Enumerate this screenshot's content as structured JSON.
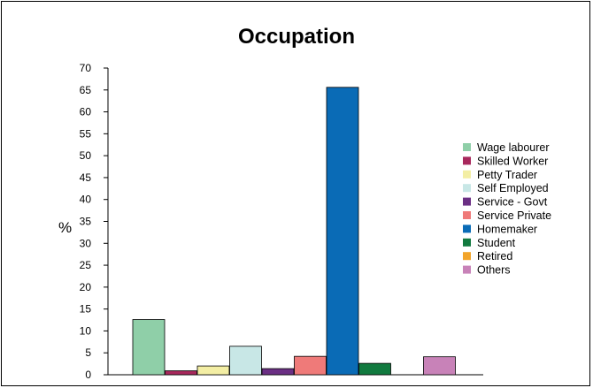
{
  "chart_data": {
    "type": "bar",
    "title": "Occupation",
    "xlabel": "",
    "ylabel": "%",
    "ylim": [
      0,
      70
    ],
    "yticks": [
      0,
      5,
      10,
      15,
      20,
      25,
      30,
      35,
      40,
      45,
      50,
      55,
      60,
      65,
      70
    ],
    "grid": false,
    "legend_position": "right",
    "categories": [
      "Wage labourer",
      "Skilled Worker",
      "Petty Trader",
      "Self Employed",
      "Service - Govt",
      "Service Private",
      "Homemaker",
      "Student",
      "Retired",
      "Others"
    ],
    "values": [
      12.6,
      0.9,
      2.0,
      6.5,
      1.4,
      4.2,
      65.6,
      2.6,
      0,
      4.1
    ],
    "colors": [
      "#8fcfa8",
      "#a8285c",
      "#f3eea4",
      "#c8e7e6",
      "#6b2f84",
      "#ef7a79",
      "#0a6bb6",
      "#117a3f",
      "#f2a42a",
      "#c882b8"
    ]
  }
}
